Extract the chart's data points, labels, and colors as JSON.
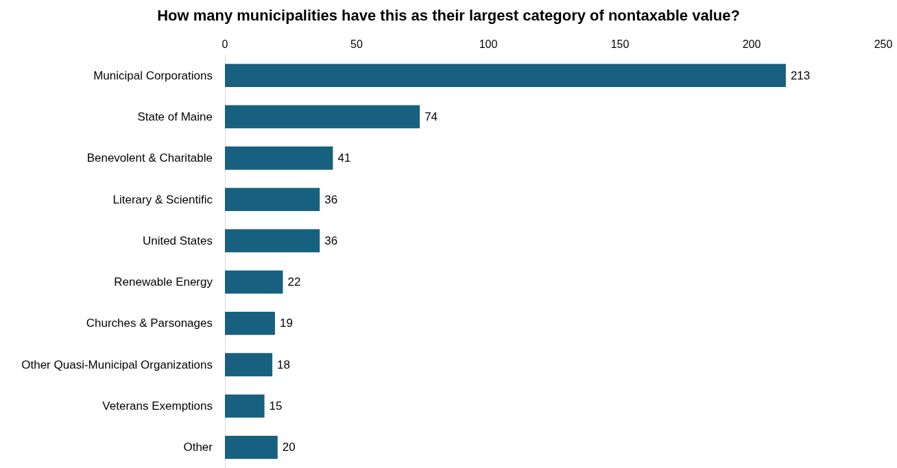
{
  "chart_data": {
    "type": "bar",
    "orientation": "horizontal",
    "title": "How many municipalities have this as their largest category of nontaxable value?",
    "categories": [
      "Municipal Corporations",
      "State of Maine",
      "Benevolent & Charitable",
      "Literary & Scientific",
      "United States",
      "Renewable Energy",
      "Churches & Parsonages",
      "Other Quasi-Municipal Organizations",
      "Veterans Exemptions",
      "Other"
    ],
    "values": [
      213,
      74,
      41,
      36,
      36,
      22,
      19,
      18,
      15,
      20
    ],
    "color": "#17607f",
    "xlim": [
      0,
      250
    ],
    "xticks": [
      0,
      50,
      100,
      150,
      200,
      250
    ],
    "grid": false,
    "data_labels": true
  }
}
